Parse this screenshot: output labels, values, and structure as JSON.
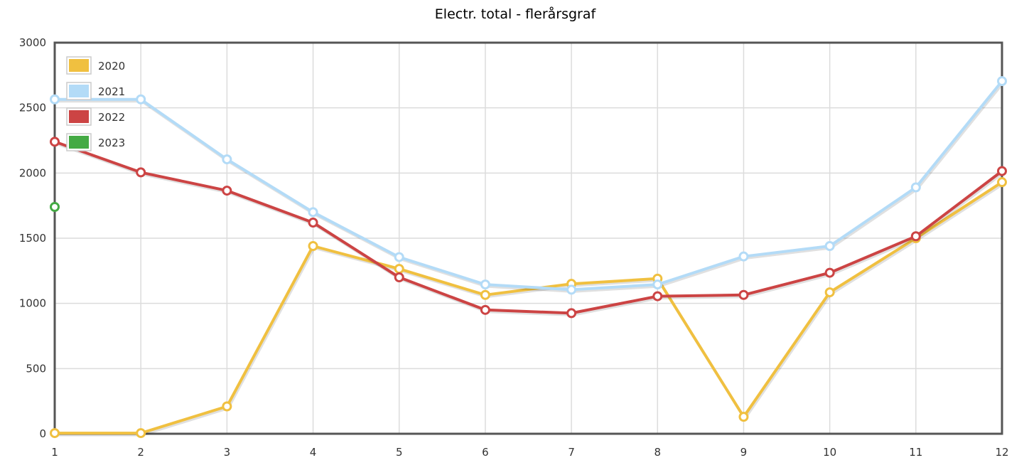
{
  "chart_data": {
    "type": "line",
    "title": "Electr. total - flerårsgraf",
    "xlabel": "",
    "ylabel": "",
    "categories": [
      "1",
      "2",
      "3",
      "4",
      "5",
      "6",
      "7",
      "8",
      "9",
      "10",
      "11",
      "12"
    ],
    "ylim": [
      0,
      3000
    ],
    "yticks": [
      "0",
      "500",
      "1000",
      "1500",
      "2000",
      "2500",
      "3000"
    ],
    "grid": true,
    "legend_position": "top-left",
    "series": [
      {
        "name": "2020",
        "color": "#f0c040",
        "values": [
          5,
          5,
          210,
          1440,
          1265,
          1065,
          1150,
          1190,
          130,
          1085,
          1500,
          1930
        ]
      },
      {
        "name": "2021",
        "color": "#b3dbf7",
        "values": [
          2565,
          2565,
          2105,
          1700,
          1355,
          1145,
          1105,
          1145,
          1360,
          1440,
          1890,
          2705
        ]
      },
      {
        "name": "2022",
        "color": "#cc4444",
        "values": [
          2240,
          2005,
          1865,
          1620,
          1200,
          950,
          925,
          1055,
          1065,
          1235,
          1515,
          2015
        ]
      },
      {
        "name": "2023",
        "color": "#44aa44",
        "values": [
          1740,
          null,
          null,
          null,
          null,
          null,
          null,
          null,
          null,
          null,
          null,
          null
        ]
      }
    ]
  }
}
